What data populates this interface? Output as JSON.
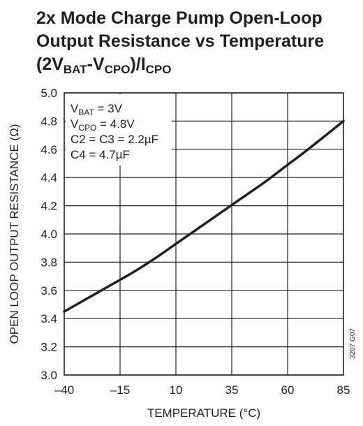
{
  "title": {
    "line1": "2x Mode Charge Pump Open-Loop",
    "line2": "Output Resistance vs Temperature",
    "line3_open": "(2V",
    "line3_sub1": "BAT",
    "line3_mid": "-V",
    "line3_sub2": "CPO",
    "line3_close": ")/I",
    "line3_sub3": "CPO"
  },
  "figure_id": "3207 G07",
  "annotations": [
    {
      "main": "V",
      "sub": "BAT",
      "rest": " = 3V"
    },
    {
      "main": "V",
      "sub": "CPO",
      "rest": " = 4.8V"
    },
    {
      "main": "C2 = C3 = 2.2µF",
      "sub": "",
      "rest": ""
    },
    {
      "main": "C4 = 4.7µF",
      "sub": "",
      "rest": ""
    }
  ],
  "chart_data": {
    "type": "line",
    "xlabel": "TEMPERATURE (°C)",
    "ylabel": "OPEN LOOP OUTPUT RESISTANCE (Ω)",
    "xlim": [
      -40,
      85
    ],
    "ylim": [
      3.0,
      5.0
    ],
    "x_ticks": [
      -40,
      -15,
      10,
      35,
      60,
      85
    ],
    "x_tick_labels": [
      "–40",
      "–15",
      "10",
      "35",
      "60",
      "85"
    ],
    "y_ticks": [
      3.0,
      3.2,
      3.4,
      3.6,
      3.8,
      4.0,
      4.2,
      4.4,
      4.6,
      4.8,
      5.0
    ],
    "y_tick_labels": [
      "3.0",
      "3.2",
      "3.4",
      "3.6",
      "3.8",
      "4.0",
      "4.2",
      "4.4",
      "4.6",
      "4.8",
      "5.0"
    ],
    "grid": true,
    "series": [
      {
        "x": [
          -40,
          -30,
          -20,
          -10,
          0,
          10,
          20,
          30,
          40,
          50,
          60,
          70,
          85
        ],
        "y": [
          3.45,
          3.54,
          3.63,
          3.72,
          3.82,
          3.93,
          4.04,
          4.15,
          4.26,
          4.37,
          4.49,
          4.61,
          4.8
        ]
      }
    ]
  }
}
